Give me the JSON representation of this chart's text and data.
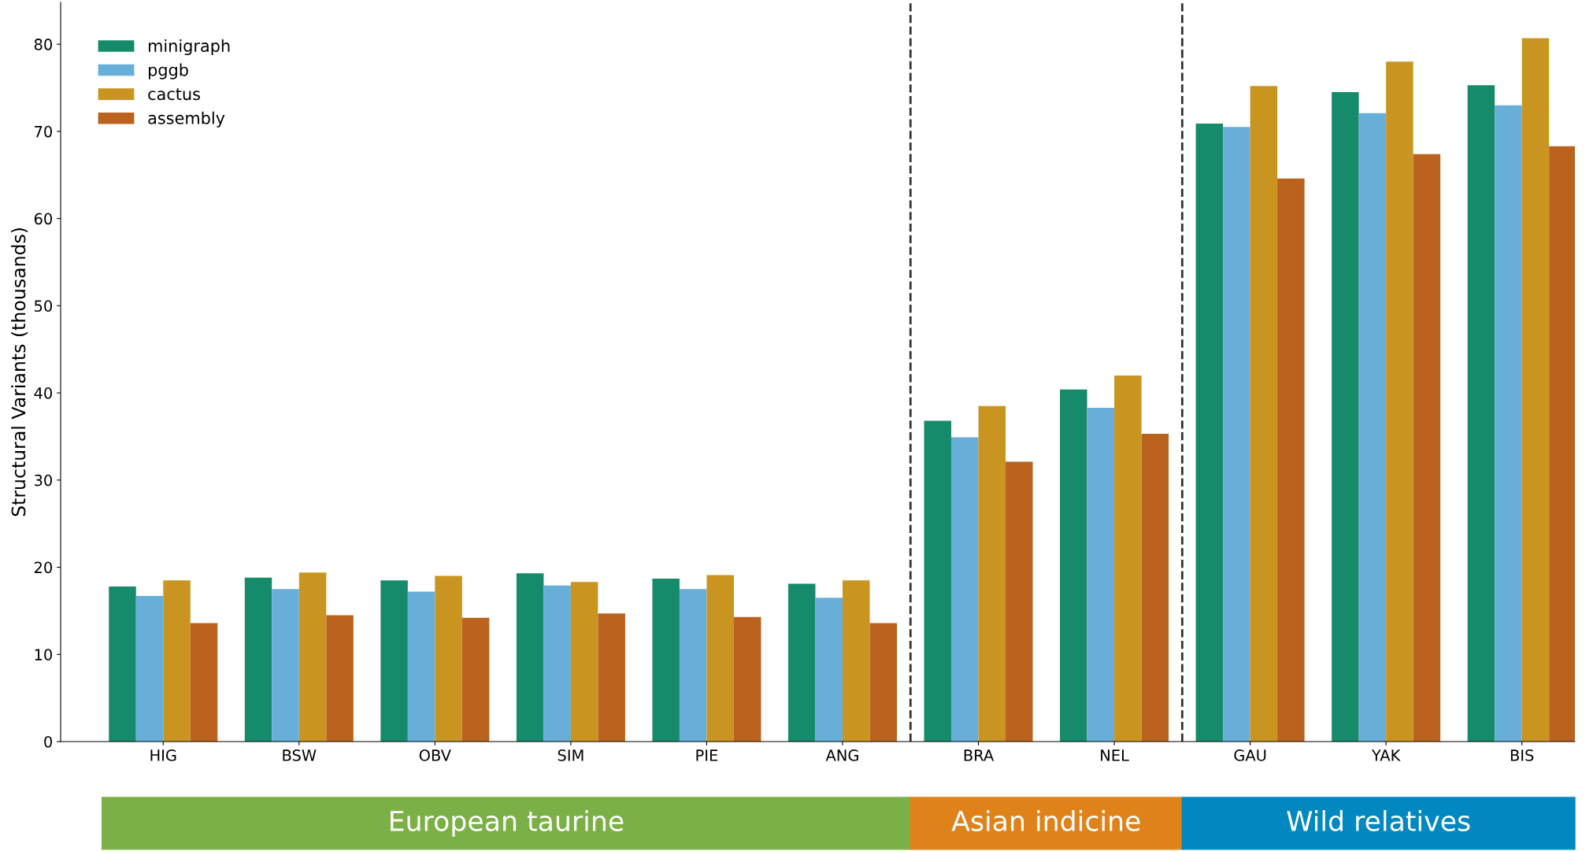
{
  "chart_data": {
    "type": "bar",
    "ylabel": "Structural Variants (thousands)",
    "categories": [
      "HIG",
      "BSW",
      "OBV",
      "SIM",
      "PIE",
      "ANG",
      "BRA",
      "NEL",
      "GAU",
      "YAK",
      "BIS"
    ],
    "series": [
      {
        "name": "minigraph",
        "color": "#168b6b",
        "values": [
          17.8,
          18.8,
          18.5,
          19.3,
          18.7,
          18.1,
          36.8,
          40.4,
          70.9,
          74.5,
          75.3
        ]
      },
      {
        "name": "pggb",
        "color": "#67afd9",
        "values": [
          16.7,
          17.5,
          17.2,
          17.9,
          17.5,
          16.5,
          34.9,
          38.3,
          70.5,
          72.1,
          73.0
        ]
      },
      {
        "name": "cactus",
        "color": "#c99520",
        "values": [
          18.5,
          19.4,
          19.0,
          18.3,
          19.1,
          18.5,
          38.5,
          42.0,
          75.2,
          78.0,
          80.7
        ]
      },
      {
        "name": "assembly",
        "color": "#bb621e",
        "values": [
          13.6,
          14.5,
          14.2,
          14.7,
          14.3,
          13.6,
          32.1,
          35.3,
          64.6,
          67.4,
          68.3
        ]
      }
    ],
    "ylim": [
      0,
      84.8
    ],
    "yticks": [
      0,
      10,
      20,
      30,
      40,
      50,
      60,
      70,
      80
    ],
    "annotations": [
      "European taurine",
      "Asian indicine",
      "Wild relatives"
    ],
    "legend": "top left",
    "grid": false
  }
}
